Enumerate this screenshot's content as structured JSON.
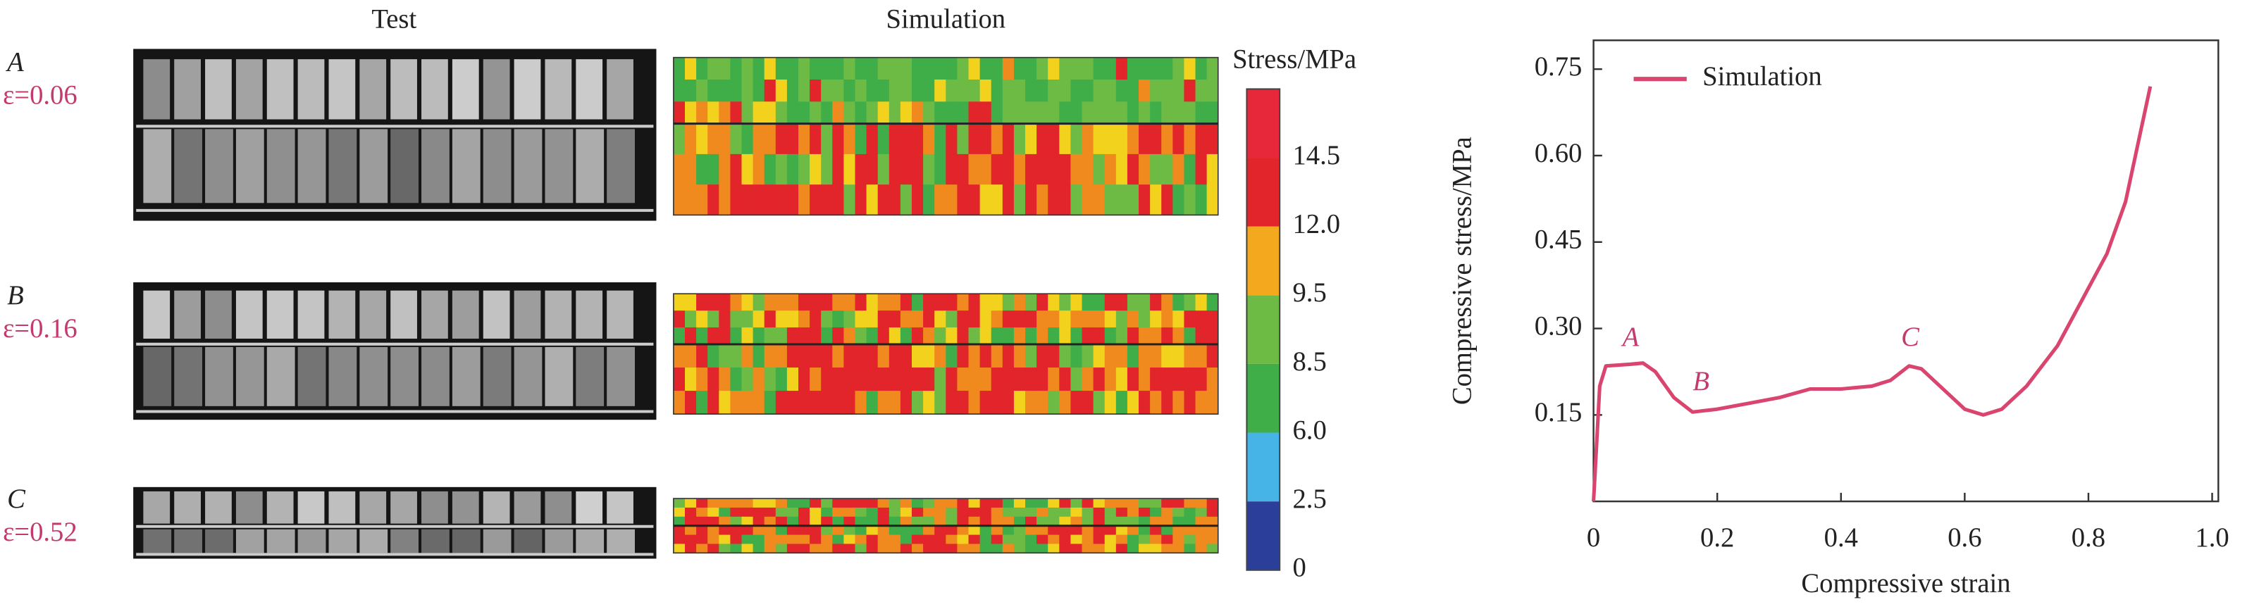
{
  "headers": [
    "Test",
    "Simulation"
  ],
  "panels": [
    {
      "label": "A",
      "strain": "ε=0.06"
    },
    {
      "label": "B",
      "strain": "ε=0.16"
    },
    {
      "label": "C",
      "strain": "ε=0.52"
    }
  ],
  "colorbar": {
    "title": "Stress/MPa",
    "colors": [
      "#2b3f9a",
      "#46b4e6",
      "#3fae49",
      "#6dbb45",
      "#f3a81e",
      "#e2242b",
      "#e6283a"
    ],
    "ticks": [
      {
        "value": 0,
        "label": "0"
      },
      {
        "value": 2.5,
        "label": "2.5"
      },
      {
        "value": 6,
        "label": "6.0"
      },
      {
        "value": 8.5,
        "label": "8.5"
      },
      {
        "value": 9.5,
        "label": "9.5"
      },
      {
        "value": 12,
        "label": "12.0"
      },
      {
        "value": 14.5,
        "label": "14.5"
      }
    ]
  },
  "chart_data": {
    "type": "line",
    "xlabel": "Compressive strain",
    "ylabel": "Compressive stress/MPa",
    "xlim": [
      0,
      1.01
    ],
    "ylim": [
      0,
      0.8
    ],
    "xticks": [
      0,
      0.2,
      0.4,
      0.6,
      0.8,
      {
        "value": 1,
        "label": "1.0"
      }
    ],
    "yticks": [
      0.15,
      {
        "value": 0.3,
        "label": "0.30"
      },
      0.45,
      {
        "value": 0.6,
        "label": "0.60"
      },
      0.75
    ],
    "legend": "upper left",
    "annotations": [
      "A",
      "B",
      "C"
    ],
    "series": [
      {
        "name": "Simulation",
        "color": "#d9456e",
        "x": [
          0,
          0.01,
          0.02,
          0.06,
          0.08,
          0.1,
          0.13,
          0.16,
          0.2,
          0.25,
          0.3,
          0.35,
          0.4,
          0.45,
          0.48,
          0.51,
          0.53,
          0.56,
          0.6,
          0.63,
          0.66,
          0.7,
          0.75,
          0.8,
          0.83,
          0.86,
          0.88,
          0.9
        ],
        "values": [
          0,
          0.2,
          0.235,
          0.238,
          0.24,
          0.225,
          0.18,
          0.155,
          0.16,
          0.17,
          0.18,
          0.195,
          0.195,
          0.2,
          0.21,
          0.235,
          0.23,
          0.2,
          0.16,
          0.15,
          0.16,
          0.2,
          0.27,
          0.37,
          0.43,
          0.52,
          0.62,
          0.72
        ]
      }
    ]
  }
}
